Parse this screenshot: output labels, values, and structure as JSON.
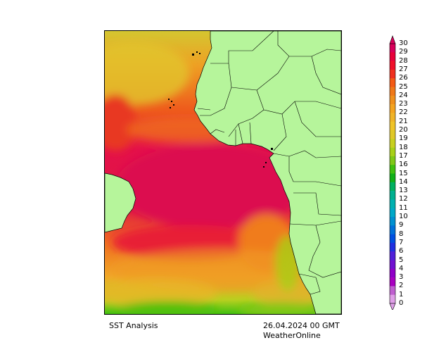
{
  "map": {
    "product": "SST Analysis",
    "datetime": "26.04.2024 00 GMT",
    "brand": "WeatherOnline",
    "land_color": "#b6f59b",
    "border_color": "#000000"
  },
  "legend": {
    "labels": [
      "30",
      "29",
      "28",
      "27",
      "26",
      "25",
      "24",
      "23",
      "22",
      "21",
      "20",
      "19",
      "18",
      "17",
      "16",
      "15",
      "14",
      "13",
      "12",
      "11",
      "10",
      "9",
      "8",
      "7",
      "6",
      "5",
      "4",
      "3",
      "2",
      "1",
      "0"
    ],
    "colors": [
      "#d8005a",
      "#e8003a",
      "#f0102a",
      "#f0301e",
      "#f45a14",
      "#f07818",
      "#f0901c",
      "#f4a420",
      "#f0b428",
      "#f0c428",
      "#e0c828",
      "#c8d020",
      "#a8d018",
      "#80c818",
      "#40c010",
      "#10b018",
      "#00b060",
      "#00b090",
      "#00b0b0",
      "#00a8c8",
      "#0090d0",
      "#0070d8",
      "#0050e0",
      "#2030e0",
      "#5020d8",
      "#7010d0",
      "#9000c8",
      "#a800c0",
      "#c060d0",
      "#e0a0e8"
    ]
  }
}
